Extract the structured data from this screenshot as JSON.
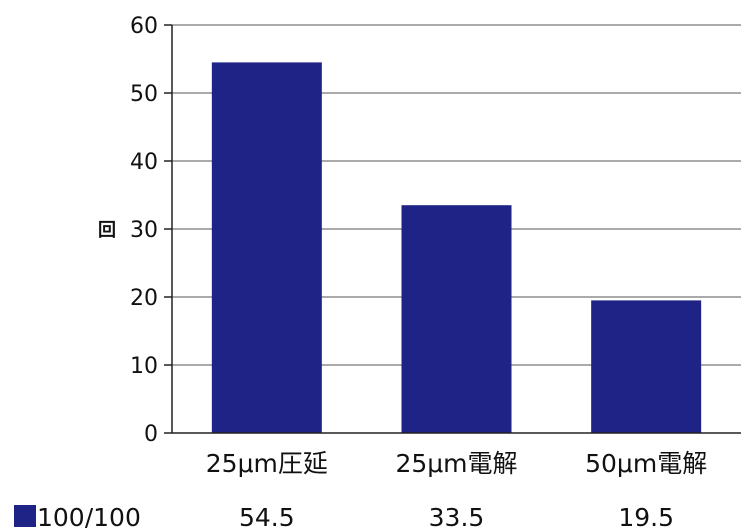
{
  "chart_data": {
    "type": "bar",
    "categories": [
      "25μm圧延",
      "25μm電解",
      "50μm電解"
    ],
    "series": [
      {
        "name": "100/100",
        "values": [
          54.5,
          33.5,
          19.5
        ],
        "color": "#1f2385"
      }
    ],
    "ylabel": "回",
    "xlabel": "",
    "ylim": [
      0,
      60
    ],
    "yticks": [
      0,
      10,
      20,
      30,
      40,
      50,
      60
    ],
    "ytick_labels": [
      "0",
      "10",
      "20",
      "30",
      "40",
      "50",
      "60"
    ],
    "value_labels": [
      "54.5",
      "33.5",
      "19.5"
    ],
    "grid": true,
    "legend": "bottom-left",
    "colors": {
      "bar": "#1f2385",
      "axis": "#222222",
      "grid": "#555555"
    }
  }
}
